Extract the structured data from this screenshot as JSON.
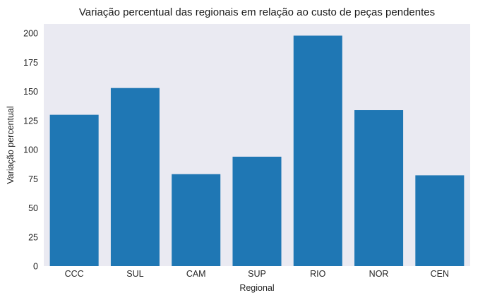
{
  "colors": {
    "plot_background": "#eaeaf2",
    "bar": "#1f77b4",
    "page_background": "#ffffff"
  },
  "chart_data": {
    "type": "bar",
    "title": "Variação percentual das regionais em relação ao custo de peças pendentes",
    "xlabel": "Regional",
    "ylabel": "Variação percentual",
    "categories": [
      "CCC",
      "SUL",
      "CAM",
      "SUP",
      "RIO",
      "NOR",
      "CEN"
    ],
    "values": [
      130,
      153,
      79,
      94,
      198,
      134,
      78
    ],
    "ylim": [
      0,
      208
    ],
    "yticks": [
      0,
      25,
      50,
      75,
      100,
      125,
      150,
      175,
      200
    ],
    "grid": false,
    "legend": "none"
  }
}
